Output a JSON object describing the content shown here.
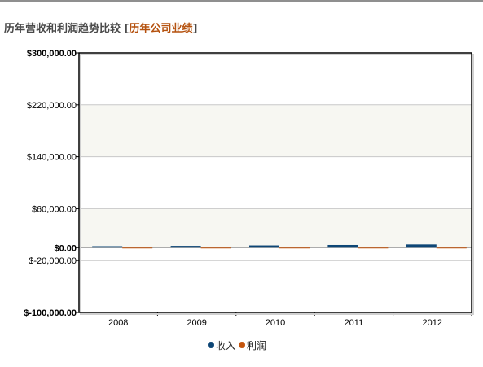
{
  "header": {
    "title": "历年营收和利润趋势比较",
    "bracket_open": "[",
    "link_label": "历年公司业绩",
    "bracket_close": "]"
  },
  "colors": {
    "revenue": "#0d4676",
    "profit": "#c4540c",
    "link": "#b5520f",
    "band": "#f7f7f2",
    "grid": "#c8c8c8",
    "frame": "#000000"
  },
  "chart_data": {
    "type": "bar",
    "categories": [
      "2008",
      "2009",
      "2010",
      "2011",
      "2012"
    ],
    "series": [
      {
        "name": "收入",
        "values": [
          2200,
          2700,
          3400,
          4100,
          4900
        ]
      },
      {
        "name": "利润",
        "values": [
          -150,
          -200,
          -250,
          -280,
          -320
        ]
      }
    ],
    "y_ticks": [
      {
        "value": 300000,
        "label": "$300,000.00",
        "bold": true
      },
      {
        "value": 220000,
        "label": "$220,000.00",
        "bold": false
      },
      {
        "value": 140000,
        "label": "$140,000.00",
        "bold": false
      },
      {
        "value": 60000,
        "label": "$60,000.00",
        "bold": false
      },
      {
        "value": 0,
        "label": "$0.00",
        "bold": true
      },
      {
        "value": -20000,
        "label": "$-20,000.00",
        "bold": false
      },
      {
        "value": -100000,
        "label": "$-100,000.00",
        "bold": true
      }
    ],
    "ylim": [
      -100000,
      300000
    ],
    "grid": true,
    "legend_position": "bottom-center",
    "title": "",
    "xlabel": "",
    "ylabel": ""
  }
}
